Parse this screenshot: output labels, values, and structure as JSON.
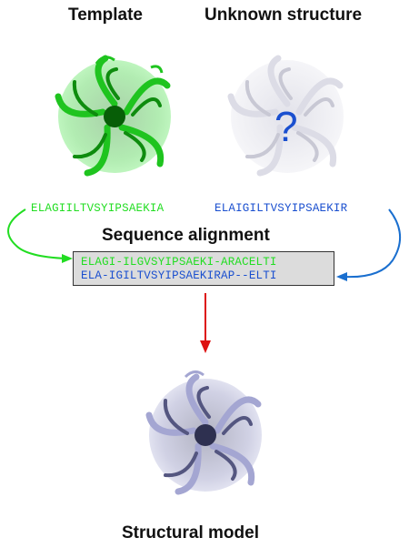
{
  "titles": {
    "template": "Template",
    "unknown": "Unknown structure",
    "alignment": "Sequence alignment",
    "model": "Structural model"
  },
  "sequences": {
    "template_seq": "ELAGIILTVSYIPSAEKIA",
    "unknown_seq": "ELAIGILTVSYIPSAEKIR"
  },
  "alignment": {
    "line1": "ELAGI-ILGVSYIPSAEKI-ARACELTI",
    "line2": "ELA-IGILTVSYIPSAEKIRAP--ELTI"
  },
  "unknown_symbol": "?",
  "colors": {
    "template_green": "#22dd22",
    "unknown_blue": "#1a4fcf",
    "unknown_structure_gray": "#e4e4ee",
    "model_lavender": "#9a9cc8",
    "arrow_red": "#dd1111",
    "alignment_box": "#dcdcdc"
  },
  "icons": {
    "template": "protein-beta-propeller-green",
    "unknown": "protein-beta-propeller-faded",
    "model": "protein-beta-propeller-lavender"
  }
}
